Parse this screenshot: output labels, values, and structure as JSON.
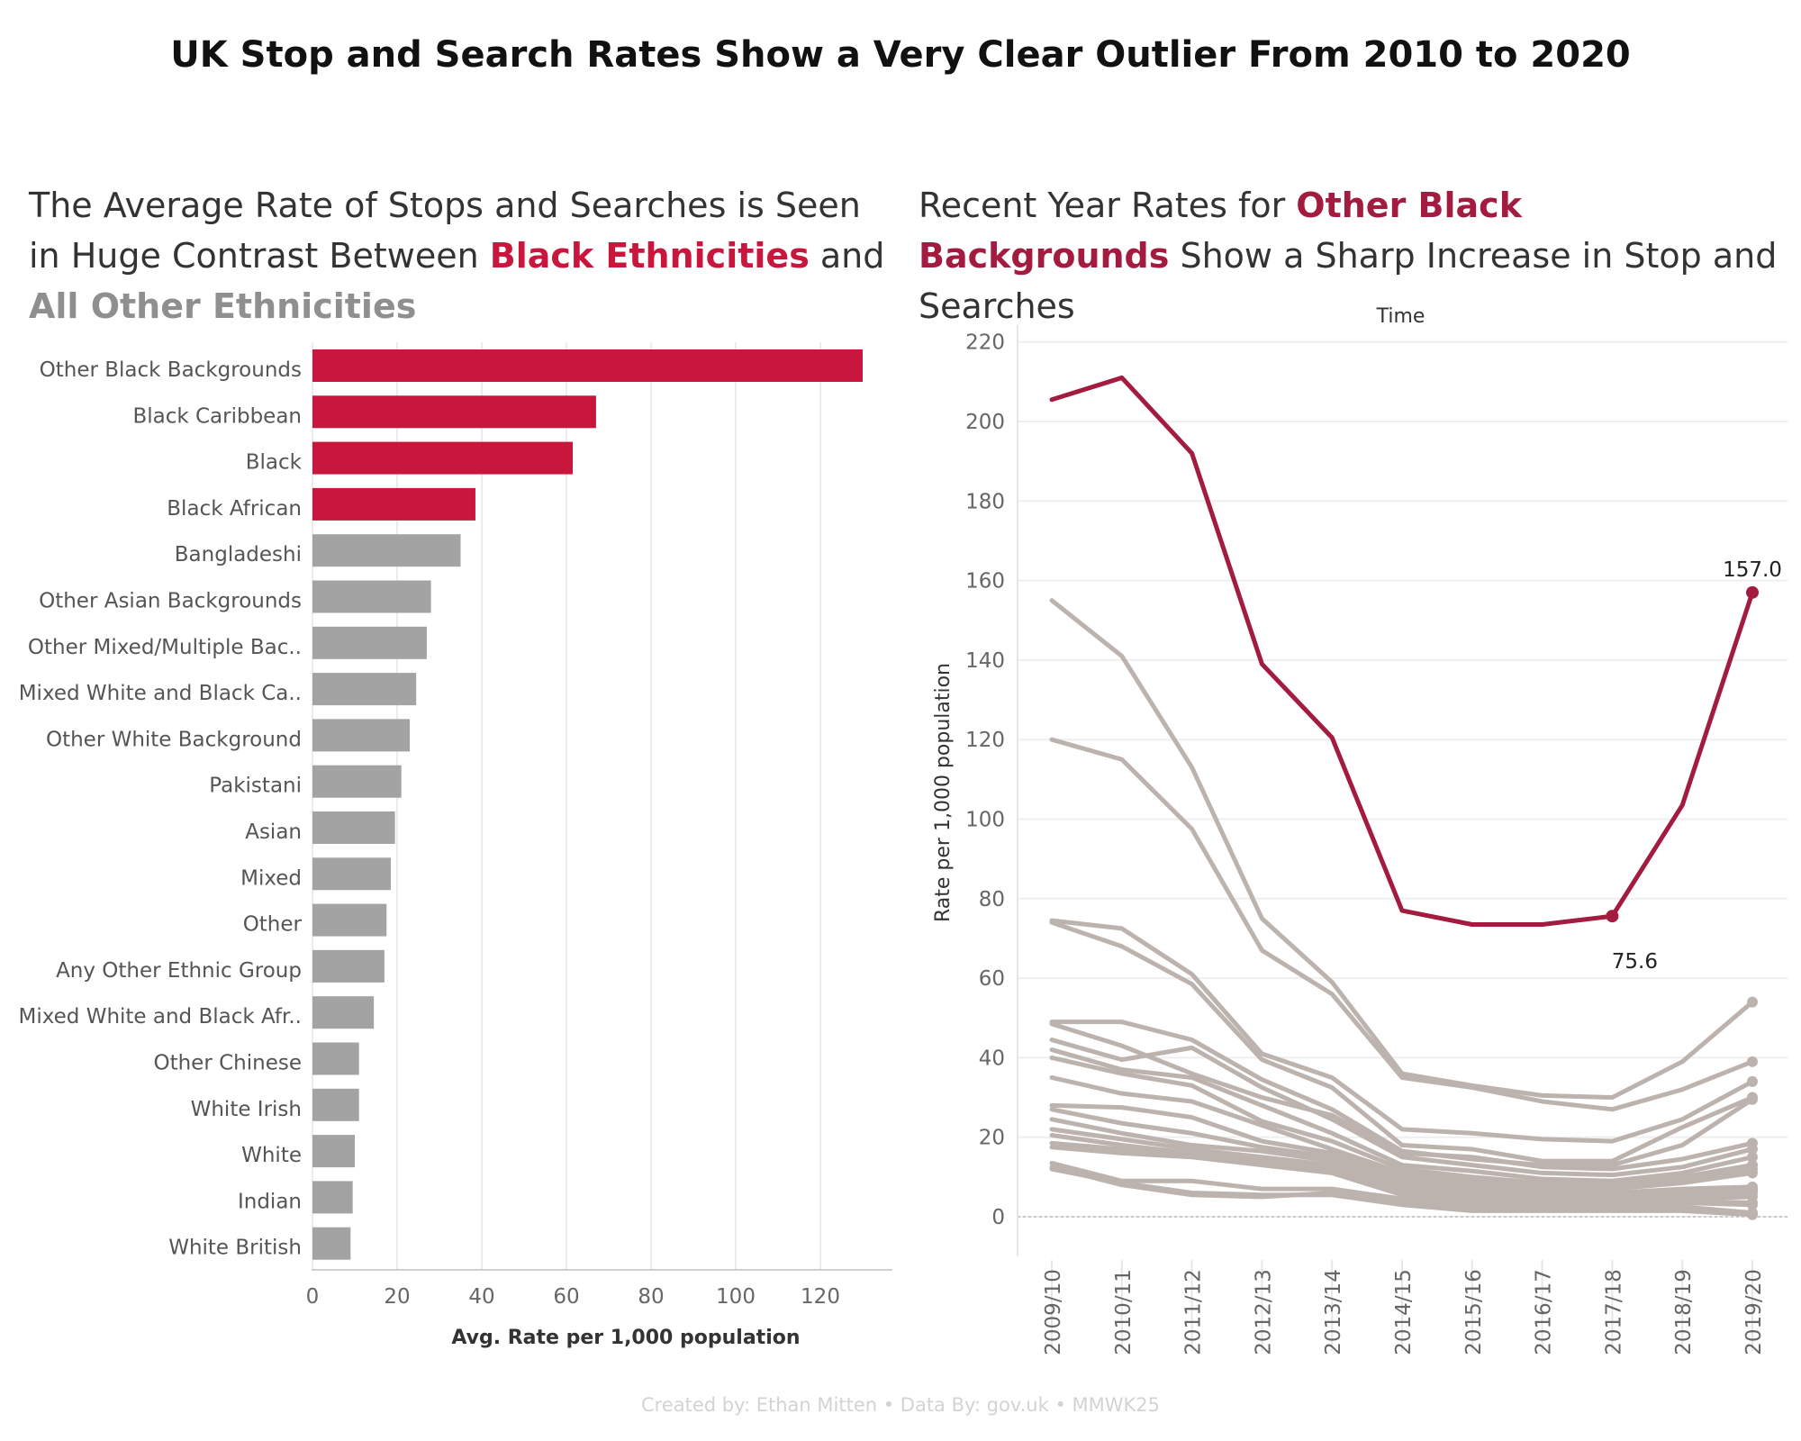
{
  "title": "UK Stop and Search Rates Show a Very Clear Outlier From 2010 to 2020",
  "left_subtitle": {
    "part1": "The Average Rate of Stops and Searches is Seen in Huge Contrast Between ",
    "highlight1": "Black Ethnicities",
    "part2": " and ",
    "highlight2": "All Other Ethnicities"
  },
  "right_subtitle": {
    "part1": "Recent Year Rates for ",
    "highlight": "Other Black Backgrounds",
    "part2": " Show a Sharp Increase in Stop and Searches"
  },
  "footer": "Created by: Ethan Mitten • Data By: gov.uk • MMWK25",
  "colors": {
    "black_group": "#c8163d",
    "other_group": "#a3a3a3",
    "highlight_line": "#a31b3f",
    "other_lines": "#bdb3ae"
  },
  "chart_data": [
    {
      "type": "bar",
      "orientation": "horizontal",
      "xlabel": "Avg. Rate per 1,000 population",
      "xlim": [
        0,
        137
      ],
      "xticks": [
        0,
        20,
        40,
        60,
        80,
        100,
        120
      ],
      "grid": true,
      "categories": [
        "Other Black Backgrounds",
        "Black Caribbean",
        "Black",
        "Black African",
        "Bangladeshi",
        "Other Asian Backgrounds",
        "Other Mixed/Multiple Bac..",
        "Mixed White and Black Ca..",
        "Other White Background",
        "Pakistani",
        "Asian",
        "Mixed",
        "Other",
        "Any Other Ethnic Group",
        "Mixed White and Black Afr..",
        "Other Chinese",
        "White Irish",
        "White",
        "Indian",
        "White British"
      ],
      "values": [
        130,
        67,
        61.5,
        38.5,
        35,
        28,
        27,
        24.5,
        23,
        21,
        19.5,
        18.5,
        17.5,
        17,
        14.5,
        11,
        11,
        10,
        9.5,
        9
      ],
      "groups": [
        "black",
        "black",
        "black",
        "black",
        "other",
        "other",
        "other",
        "other",
        "other",
        "other",
        "other",
        "other",
        "other",
        "other",
        "other",
        "other",
        "other",
        "other",
        "other",
        "other"
      ]
    },
    {
      "type": "line",
      "title": "Time",
      "ylabel": "Rate per 1,000 population",
      "ylim": [
        -10,
        222
      ],
      "yticks": [
        0,
        20,
        40,
        60,
        80,
        100,
        120,
        140,
        160,
        180,
        200,
        220
      ],
      "grid": true,
      "categories": [
        "2009/10",
        "2010/11",
        "2011/12",
        "2012/13",
        "2013/14",
        "2014/15",
        "2015/16",
        "2016/17",
        "2017/18",
        "2018/19",
        "2019/20"
      ],
      "highlight_series": {
        "name": "Other Black Backgrounds",
        "values": [
          205.5,
          211,
          192,
          139,
          120.5,
          77,
          73.5,
          73.5,
          75.6,
          103.5,
          157.0
        ]
      },
      "annotations": [
        {
          "category": "2017/18",
          "value": 75.6,
          "label": "75.6"
        },
        {
          "category": "2019/20",
          "value": 157.0,
          "label": "157.0"
        }
      ],
      "series": [
        {
          "values": [
            155,
            141,
            113,
            75,
            59,
            36,
            33,
            30.5,
            30,
            39,
            54
          ]
        },
        {
          "values": [
            120,
            115,
            97.5,
            67,
            56,
            35,
            32.5,
            29,
            27,
            32,
            39
          ]
        },
        {
          "values": [
            74.5,
            72.5,
            61,
            41,
            35,
            22,
            21,
            19.5,
            19,
            24.5,
            34
          ]
        },
        {
          "values": [
            74,
            68,
            58.5,
            39.5,
            32.5,
            18,
            17,
            14,
            14,
            22.5,
            30
          ]
        },
        {
          "values": [
            49,
            49,
            44.5,
            34.5,
            27,
            16.5,
            14.5,
            13,
            13,
            18,
            29.5
          ]
        },
        {
          "values": [
            48.5,
            43,
            36,
            30,
            25.5,
            16,
            15,
            12.5,
            12,
            14.5,
            18.5
          ]
        },
        {
          "values": [
            44.5,
            39.5,
            42.5,
            32.5,
            24.5,
            15,
            13,
            11,
            10.5,
            12.5,
            17
          ]
        },
        {
          "values": [
            42,
            37,
            35,
            28,
            21,
            13,
            11.5,
            9.5,
            9,
            11,
            15
          ]
        },
        {
          "values": [
            40,
            36,
            33,
            24,
            19,
            12,
            10,
            8.5,
            8,
            10,
            13
          ]
        },
        {
          "values": [
            35,
            31,
            29,
            23,
            17,
            11,
            9,
            8,
            7.5,
            9.5,
            12
          ]
        },
        {
          "values": [
            28,
            27.5,
            25,
            19,
            16,
            10,
            8,
            7,
            7,
            8.5,
            11
          ]
        },
        {
          "values": [
            27,
            23.5,
            21,
            17.5,
            15,
            9,
            7.5,
            6.5,
            6,
            7,
            7.5
          ]
        },
        {
          "values": [
            24.5,
            21,
            18,
            16.5,
            14,
            8,
            7,
            6,
            5.5,
            6.5,
            7
          ]
        },
        {
          "values": [
            22,
            19.5,
            17,
            15,
            13,
            7.5,
            6,
            5.5,
            5,
            6,
            6.5
          ]
        },
        {
          "values": [
            20.5,
            18,
            16,
            14.5,
            12,
            7,
            5.5,
            5,
            4.5,
            5,
            6
          ]
        },
        {
          "values": [
            18.5,
            17,
            15.5,
            14,
            11.5,
            6,
            5,
            4,
            4,
            4.5,
            5
          ]
        },
        {
          "values": [
            17.5,
            16,
            15,
            13,
            11,
            5.5,
            4,
            3.5,
            3.5,
            4,
            3.5
          ]
        },
        {
          "values": [
            13.5,
            9,
            9,
            7,
            7,
            4.5,
            3,
            3,
            3,
            3.5,
            3
          ]
        },
        {
          "values": [
            12.5,
            8,
            5.5,
            5,
            6,
            3.5,
            2,
            2,
            2,
            2.5,
            1
          ]
        },
        {
          "values": [
            12,
            8.5,
            6,
            5.5,
            5.5,
            3,
            1.5,
            1.5,
            1.5,
            1.5,
            0.5
          ]
        }
      ]
    }
  ]
}
